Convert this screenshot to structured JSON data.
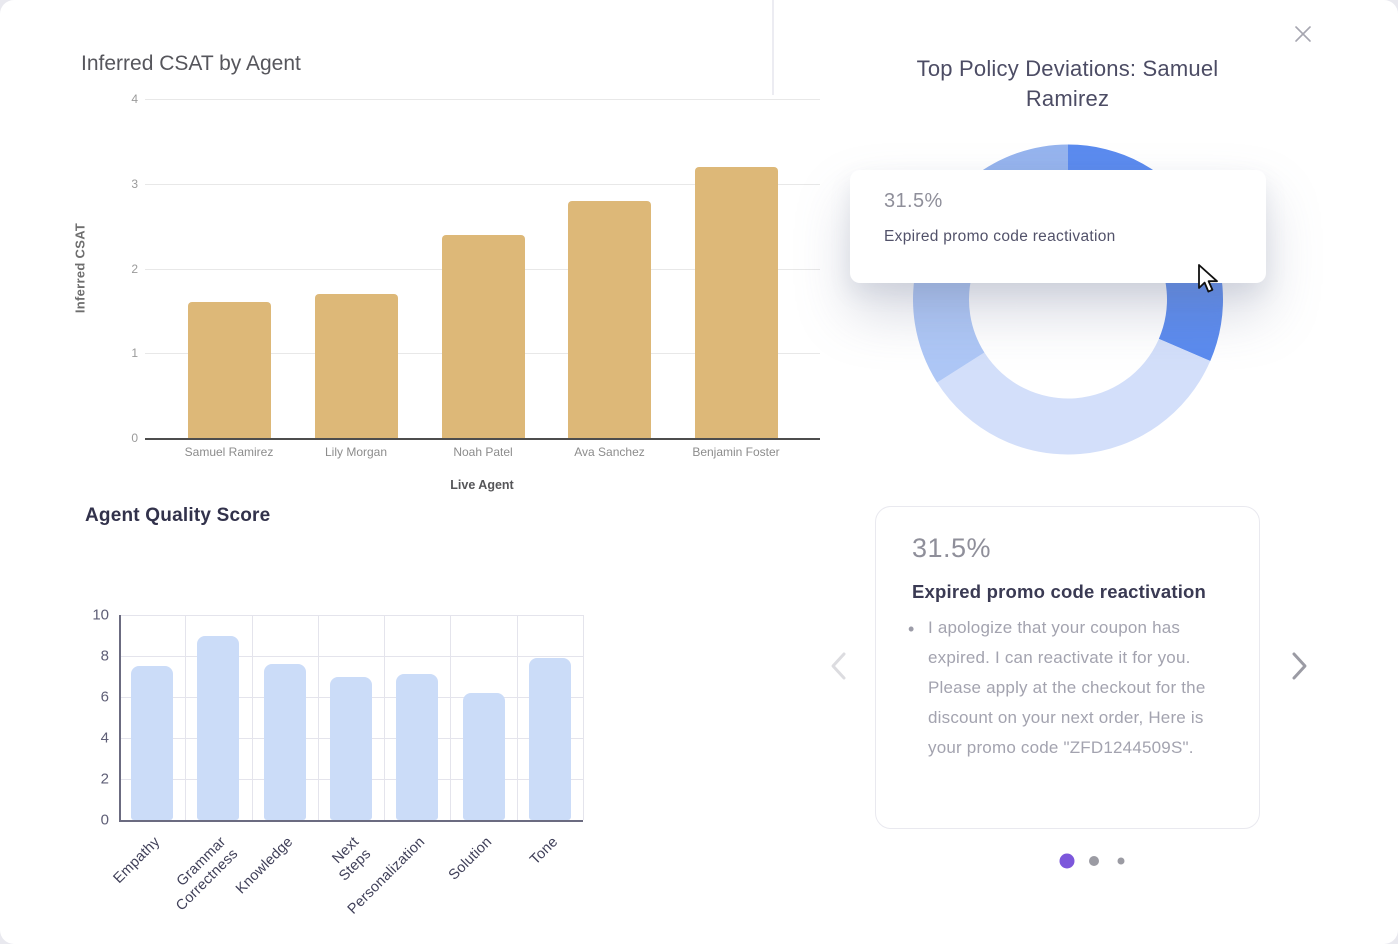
{
  "chart_data": [
    {
      "type": "bar",
      "title": "Inferred CSAT by Agent",
      "xlabel": "Live Agent",
      "ylabel": "Inferred CSAT",
      "categories": [
        "Samuel Ramirez",
        "Lily Morgan",
        "Noah Patel",
        "Ava Sanchez",
        "Benjamin Foster"
      ],
      "values": [
        1.6,
        1.7,
        2.4,
        2.8,
        3.2
      ],
      "yticks": [
        0,
        1,
        2,
        3,
        4
      ],
      "ylim": [
        0,
        4
      ],
      "bar_color": "#DDB878",
      "grid": "horizontal",
      "legend": "none"
    },
    {
      "type": "bar",
      "title": "Agent Quality Score",
      "xlabel": "",
      "ylabel": "",
      "categories": [
        "Empathy",
        "Grammar Correctness",
        "Knowledge",
        "Next Steps",
        "Personalization",
        "Solution",
        "Tone"
      ],
      "category_lines": [
        [
          "Empathy"
        ],
        [
          "Grammar",
          "Correctness"
        ],
        [
          "Knowledge"
        ],
        [
          "Next",
          "Steps"
        ],
        [
          "Personalization"
        ],
        [
          "Solution"
        ],
        [
          "Tone"
        ]
      ],
      "values": [
        7.5,
        9.0,
        7.6,
        7.0,
        7.1,
        6.2,
        7.9
      ],
      "yticks": [
        0,
        2,
        4,
        6,
        8,
        10
      ],
      "ylim": [
        0,
        10
      ],
      "bar_color": "#CBDCF8",
      "grid": "both",
      "legend": "none"
    },
    {
      "type": "pie",
      "donut": true,
      "title": "Top Policy Deviations: Samuel Ramirez",
      "slices": [
        {
          "label": "Expired promo code reactivation",
          "value": 31.5,
          "color": "#5B8BEF",
          "hovered": true
        },
        {
          "label": "",
          "value": 34.5,
          "color": "#D3DFFA"
        },
        {
          "label": "",
          "value": 13.0,
          "color": "#AEC7F6"
        },
        {
          "label": "",
          "value": 21.0,
          "color": "#96B4EE"
        }
      ],
      "legend": "none"
    }
  ],
  "policy_panel": {
    "title_lines": [
      "Top Policy Deviations: Samuel",
      "Ramirez"
    ],
    "tooltip": {
      "percent": "31.5%",
      "label": "Expired promo code reactivation"
    },
    "card": {
      "percent": "31.5%",
      "title": "Expired promo code reactivation",
      "bullet_marker": "•",
      "bullet": "I apologize that your coupon has expired. I can reactivate it for you. Please apply at the checkout for the discount on your next order, Here is your promo code \"ZFD1244509S\"."
    },
    "carousel": {
      "dot_count": 3,
      "active_index": 0
    }
  },
  "colors": {
    "csat_bar": "#DDB878",
    "quality_bar": "#CBDCF8",
    "donut_active": "#5B8BEF",
    "active_dot": "#7C57DB",
    "inactive_dot": "#9B9BA3"
  }
}
